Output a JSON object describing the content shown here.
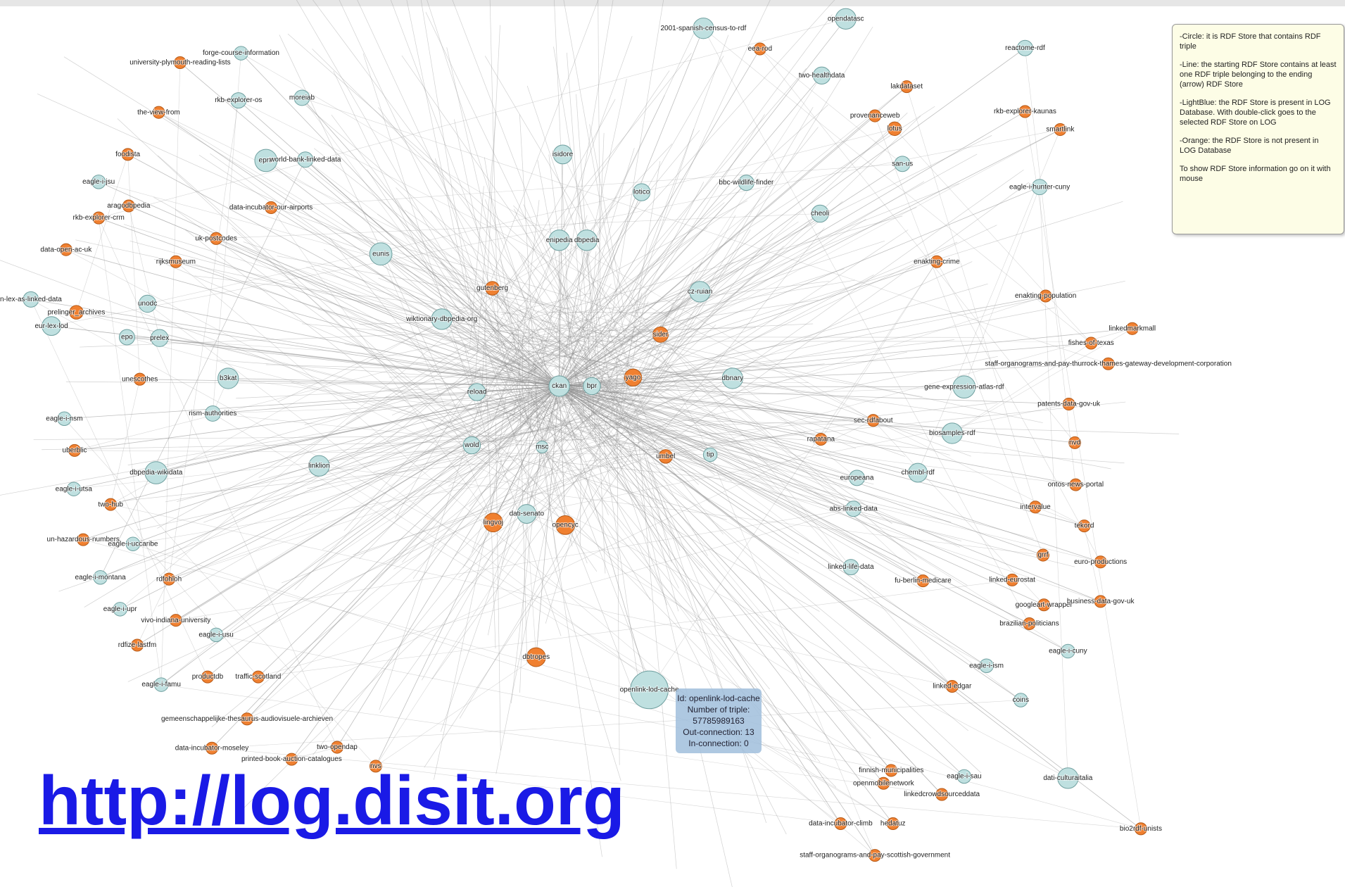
{
  "node_groups": [
    {
      "color": "#bfe0e0",
      "stroke": "#6f9f9f",
      "nodes": [
        "ckan",
        "bpr",
        "reload",
        "wold",
        "msc",
        "eprtr",
        "eunis",
        "unodc",
        "epo",
        "prelex",
        "eur-lex-lod",
        "n-lex-as-linked-data",
        "b3kat",
        "rism-authorities",
        "linklion",
        "dbpedia-wikidata",
        "openlink-lod-cache",
        "dati-senato",
        "gene-expression-atlas-rdf",
        "biosamples-rdf",
        "chembl-rdf",
        "dati-culturaitalia",
        "opendatasc",
        "reactome-rdf",
        "two-healthdata",
        "eagle-i-hunter-cuny",
        "san-us",
        "cheoli",
        "isidore",
        "lotico",
        "tip",
        "dbpedia",
        "eagle-i-jsu",
        "eagle-i-nsm",
        "eagle-i-utsa",
        "eagle-i-uccaribe",
        "eagle-i-montana",
        "eagle-i-upr",
        "eagle-i-usu",
        "eagle-i-famu",
        "eagle-i-sau",
        "coins",
        "eagle-i-ism",
        "eagle-i-cuny",
        "linked-life-data",
        "abs-linked-data",
        "forge-course-information",
        "rkb-explorer-os",
        "moreiab",
        "world-bank-linked-data",
        "bbc-wildlife-finder",
        "2001-spanish-census-to-rdf",
        "wiktionary-dbpedia-org",
        "cz-ruian",
        "dbnary",
        "europeana",
        "enipedia"
      ]
    },
    {
      "color": "#f08030",
      "stroke": "#b55a18",
      "nodes": [
        "yago",
        "lingvoj",
        "opencyc",
        "dbtropes",
        "rkb-explorer-kaunas",
        "smartlink",
        "lakdataset",
        "provenanceweb",
        "lotus",
        "enakting-crime",
        "enakting-population",
        "linkedmarkmall",
        "fishes-of-texas",
        "staff-organograms-and-pay-thurrock-thames-gateway-development-corporation",
        "patents-data-gov-uk",
        "nvd",
        "sec-rdfabout",
        "rapatana",
        "ontos-news-portal",
        "intervalue",
        "tekord",
        "grrf",
        "euro-productions",
        "university-plymouth-reading-lists",
        "the-view-from",
        "foodista",
        "aragodbpedia",
        "rkb-explorer-crm",
        "data-open-ac-uk",
        "uk-postcodes",
        "rijksmuseum",
        "prelinger_archives",
        "unescothes",
        "uberblic",
        "two-hub",
        "un-hazardous-numbers",
        "rdfohloh",
        "vivo-indiana-university",
        "rdfize-lastfm",
        "productdb",
        "traffic-scotland",
        "gemeenschappelijke-thesaurus-audiovisuele-archieven",
        "data-incubator-moseley",
        "printed-book-auction-catalogues",
        "two-opendap",
        "nvs",
        "data-incubator-climb",
        "hedatuz",
        "finnish-municipalities",
        "openmobilenetwork",
        "linkedcrowdsourceddata",
        "bio2rdf-unists",
        "staff-organograms-and-pay-scottish-government",
        "brazilian-politicians",
        "googleart-wrapper",
        "business-data-gov-uk",
        "linked-eurostat",
        "linked-edgar",
        "fu-berlin-medicare",
        "eea-rod",
        "umbel",
        "gutenberg",
        "sider",
        "data-incubator-our-airports"
      ]
    }
  ],
  "legend": {
    "items": [
      "-Circle: it is RDF Store that contains RDF triple",
      "-Line: the starting RDF Store contains at least one RDF triple belonging to the ending (arrow) RDF Store",
      "-LightBlue: the RDF Store is present in LOG Database. With double-click goes to the selected RDF Store on LOG",
      "-Orange: the RDF Store is not present in LOG Database",
      "To show RDF Store information go on it with mouse"
    ]
  },
  "tooltip": {
    "lines": [
      "Id: openlink-lod-cache",
      "Number of triple: 57785989163",
      "Out-connection: 13",
      "In-connection: 0"
    ]
  },
  "url": "http://log.disit.org"
}
